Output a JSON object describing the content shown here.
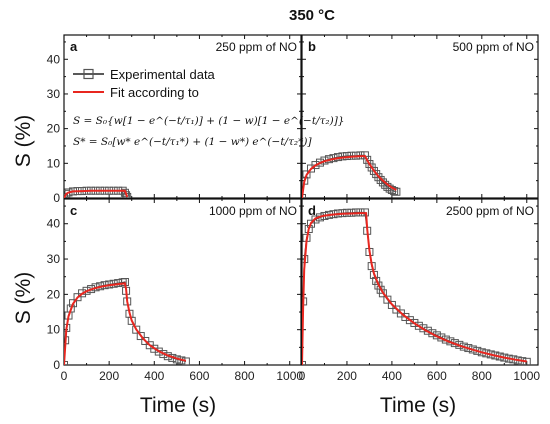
{
  "figure": {
    "title": "350 °C",
    "ylabel": "S (%)",
    "xlabel": "Time (s)",
    "legend": {
      "experimental": "Experimental data",
      "fit": "Fit according to",
      "equation1": "S = S₀{w[1 − e^(−t/τ₁)] + (1 − w)[1 − e^(−t/τ₂)]}",
      "equation2": "S* = S₀[w* e^(−t/τ₁*) + (1 − w*) e^(−t/τ₂*)]"
    },
    "colors": {
      "fit": "#e8261f",
      "marker": "#555555",
      "axis": "#111111"
    }
  },
  "chart_data": [
    {
      "panel": "a",
      "type": "line",
      "annotation": "250 ppm of NO",
      "xlim": [
        0,
        1050
      ],
      "ylim": [
        0,
        47
      ],
      "xticks": [],
      "yticks": [
        0,
        10,
        20,
        30,
        40
      ],
      "series": [
        {
          "name": "Experimental data",
          "x": [
            0,
            10,
            20,
            40,
            60,
            80,
            100,
            120,
            140,
            160,
            180,
            200,
            220,
            240,
            260,
            270,
            275,
            280
          ],
          "y": [
            0,
            1.2,
            1.6,
            1.9,
            2.0,
            2.0,
            2.1,
            2.1,
            2.1,
            2.1,
            2.1,
            2.1,
            2.1,
            2.1,
            2.1,
            1.5,
            0.8,
            0.3
          ]
        },
        {
          "name": "Fit according to",
          "x": [
            0,
            10,
            20,
            40,
            80,
            120,
            160,
            200,
            240,
            270,
            275,
            280
          ],
          "y": [
            0,
            1.2,
            1.6,
            1.9,
            2.0,
            2.1,
            2.1,
            2.1,
            2.1,
            2.1,
            1.2,
            0.3
          ]
        }
      ]
    },
    {
      "panel": "b",
      "type": "line",
      "annotation": "500 ppm of NO",
      "xlim": [
        0,
        1050
      ],
      "ylim": [
        0,
        47
      ],
      "xticks": [],
      "yticks": [],
      "series": [
        {
          "name": "Experimental data",
          "x": [
            0,
            10,
            20,
            40,
            60,
            80,
            100,
            120,
            140,
            160,
            180,
            200,
            220,
            240,
            260,
            280,
            290,
            300,
            310,
            320,
            330,
            340,
            350,
            360,
            370,
            380,
            390,
            400,
            410,
            420
          ],
          "y": [
            0,
            5.0,
            6.8,
            8.5,
            9.5,
            10.2,
            10.8,
            11.2,
            11.5,
            11.8,
            12.0,
            12.1,
            12.2,
            12.2,
            12.3,
            12.3,
            11.0,
            9.8,
            8.8,
            7.8,
            6.9,
            6.0,
            5.2,
            4.5,
            3.8,
            3.2,
            2.7,
            2.3,
            2.0,
            1.8
          ]
        },
        {
          "name": "Fit according to",
          "x": [
            0,
            10,
            20,
            40,
            60,
            80,
            100,
            130,
            160,
            200,
            240,
            280,
            290,
            300,
            320,
            340,
            360,
            380,
            400,
            420
          ],
          "y": [
            0,
            4.6,
            6.6,
            8.4,
            9.4,
            10.1,
            10.6,
            11.1,
            11.5,
            11.8,
            12.0,
            12.1,
            10.9,
            9.8,
            7.9,
            6.3,
            5.0,
            3.9,
            3.0,
            2.3
          ]
        }
      ]
    },
    {
      "panel": "c",
      "type": "line",
      "annotation": "1000 ppm of NO",
      "xlim": [
        0,
        1050
      ],
      "ylim": [
        0,
        47
      ],
      "xticks": [
        0,
        200,
        400,
        600,
        800,
        1000
      ],
      "yticks": [
        0,
        10,
        20,
        30,
        40
      ],
      "series": [
        {
          "name": "Experimental data",
          "x": [
            0,
            5,
            10,
            20,
            30,
            40,
            60,
            80,
            100,
            120,
            140,
            160,
            180,
            200,
            220,
            240,
            260,
            270,
            275,
            280,
            290,
            300,
            320,
            340,
            360,
            380,
            400,
            420,
            440,
            460,
            480,
            500,
            520,
            540
          ],
          "y": [
            0,
            7,
            10.5,
            14,
            16,
            17.5,
            19.2,
            20.3,
            21.0,
            21.5,
            22.0,
            22.3,
            22.6,
            22.8,
            23.0,
            23.2,
            23.4,
            23.5,
            21.0,
            18.0,
            14.5,
            12.5,
            10.0,
            8.2,
            6.8,
            5.6,
            4.6,
            3.8,
            3.1,
            2.5,
            2.0,
            1.6,
            1.3,
            1.0
          ]
        },
        {
          "name": "Fit according to",
          "x": [
            0,
            10,
            20,
            40,
            60,
            80,
            100,
            130,
            160,
            200,
            240,
            270,
            275,
            280,
            290,
            300,
            320,
            350,
            380,
            420,
            460,
            500,
            540
          ],
          "y": [
            0,
            10,
            13.8,
            17.3,
            19.1,
            20.2,
            20.9,
            21.6,
            22.1,
            22.6,
            22.9,
            23.1,
            21.5,
            18.0,
            14.8,
            12.6,
            10.1,
            7.5,
            5.6,
            3.9,
            2.7,
            1.8,
            1.2
          ]
        }
      ]
    },
    {
      "panel": "d",
      "type": "line",
      "annotation": "2500 ppm of NO",
      "xlim": [
        0,
        1050
      ],
      "ylim": [
        0,
        47
      ],
      "xticks": [
        0,
        200,
        400,
        600,
        800,
        1000
      ],
      "yticks": [],
      "series": [
        {
          "name": "Experimental data",
          "x": [
            0,
            5,
            10,
            20,
            30,
            40,
            60,
            80,
            100,
            120,
            140,
            160,
            180,
            200,
            220,
            240,
            260,
            280,
            290,
            300,
            310,
            320,
            330,
            340,
            350,
            360,
            380,
            400,
            420,
            440,
            460,
            480,
            500,
            520,
            540,
            560,
            580,
            600,
            620,
            640,
            660,
            680,
            700,
            720,
            740,
            760,
            780,
            800,
            820,
            840,
            860,
            880,
            900,
            920,
            940,
            960,
            980,
            1000
          ],
          "y": [
            0,
            18,
            30,
            36,
            38.5,
            40,
            41.2,
            41.8,
            42.2,
            42.5,
            42.7,
            42.9,
            43.0,
            43.1,
            43.1,
            43.2,
            43.2,
            43.2,
            38,
            32,
            28,
            25.5,
            23.8,
            22.5,
            21.3,
            20.3,
            18.5,
            17.0,
            15.7,
            14.6,
            13.6,
            12.7,
            11.9,
            11.1,
            10.4,
            9.7,
            9.0,
            8.4,
            7.8,
            7.2,
            6.7,
            6.2,
            5.7,
            5.2,
            4.8,
            4.4,
            4.0,
            3.6,
            3.3,
            3.0,
            2.7,
            2.4,
            2.1,
            1.8,
            1.6,
            1.3,
            1.1,
            0.9
          ]
        },
        {
          "name": "Fit according to",
          "x": [
            0,
            5,
            10,
            20,
            30,
            40,
            60,
            80,
            100,
            140,
            180,
            220,
            260,
            285,
            290,
            300,
            310,
            320,
            340,
            360,
            400,
            450,
            500,
            550,
            600,
            650,
            700,
            750,
            800,
            850,
            900,
            950,
            1000
          ],
          "y": [
            0,
            16,
            27,
            35,
            38.5,
            40.2,
            41.5,
            42.0,
            42.3,
            42.6,
            42.8,
            42.9,
            43.0,
            43.0,
            38.5,
            32.5,
            28.5,
            26.0,
            22.8,
            20.5,
            17.2,
            14.2,
            11.8,
            9.8,
            8.1,
            6.7,
            5.5,
            4.5,
            3.6,
            2.8,
            2.1,
            1.5,
            1.0
          ]
        }
      ]
    }
  ]
}
